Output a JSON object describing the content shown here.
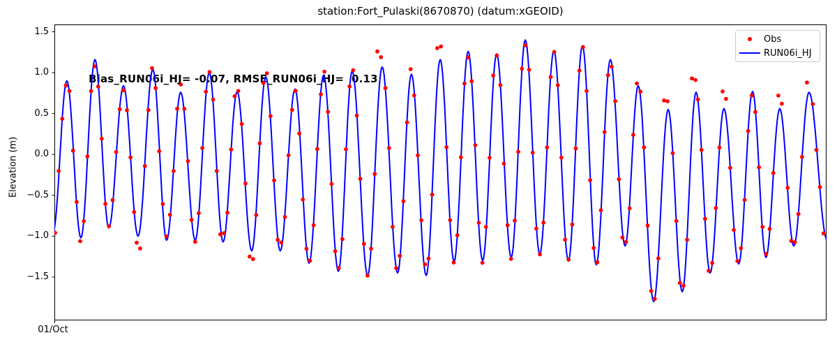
{
  "figure": {
    "title": "station:Fort_Pulaski(8670870) (datum:xGEOID)",
    "y_axis_label": "Elevation (m)",
    "annotation": "Bias_RUN06i_HJ= -0.07, RMSE_RUN06i_HJ=  0.13",
    "x_tick_label": "01/Oct",
    "y_tick_labels": [
      "1.5",
      "1.0",
      "0.5",
      "0.0",
      "−0.5",
      "−1.0",
      "−1.5"
    ]
  },
  "legend": {
    "items": [
      {
        "label": "Obs",
        "marker": "red-dot"
      },
      {
        "label": "RUN06i_HJ",
        "marker": "blue-line"
      }
    ]
  },
  "colors": {
    "obs": "#ff0000",
    "model": "#0000ff",
    "frame": "#000000",
    "legend_border": "#cccccc"
  },
  "chart_data": {
    "type": "line+scatter",
    "title": "station:Fort_Pulaski(8670870) (datum:xGEOID)",
    "xlabel": "",
    "ylabel": "Elevation (m)",
    "ylim": [
      -2.03,
      1.59
    ],
    "yticks": [
      1.5,
      1.0,
      0.5,
      0.0,
      -0.5,
      -1.0,
      -1.5
    ],
    "x_axis": {
      "start_label": "01/Oct",
      "units": "hours since 01/Oct 00:00",
      "range_hours": [
        0,
        335
      ]
    },
    "grid": false,
    "legend_position": "upper right",
    "series": [
      {
        "name": "RUN06i_HJ",
        "type": "line",
        "color": "#0000ff",
        "description": "Semidiurnal tide model curve; alternating trough/peak extrema read from plot as [t_hours, elevation_m]",
        "extrema_t_v": [
          [
            -0.6,
            -0.95
          ],
          [
            5.4,
            0.9
          ],
          [
            11.5,
            -1.02
          ],
          [
            17.6,
            1.16
          ],
          [
            23.6,
            -0.9
          ],
          [
            30.0,
            0.84
          ],
          [
            36.3,
            -1.0
          ],
          [
            42.7,
            1.04
          ],
          [
            48.7,
            -1.05
          ],
          [
            54.8,
            0.76
          ],
          [
            61.1,
            -1.05
          ],
          [
            67.2,
            1.0
          ],
          [
            73.2,
            -1.07
          ],
          [
            79.3,
            0.77
          ],
          [
            85.6,
            -1.18
          ],
          [
            91.7,
            0.95
          ],
          [
            98.0,
            -1.18
          ],
          [
            104.4,
            0.8
          ],
          [
            110.5,
            -1.33
          ],
          [
            116.8,
            0.97
          ],
          [
            123.2,
            -1.43
          ],
          [
            129.2,
            1.02
          ],
          [
            135.9,
            -1.48
          ],
          [
            142.2,
            1.07
          ],
          [
            148.9,
            -1.45
          ],
          [
            154.9,
            0.98
          ],
          [
            161.3,
            -1.48
          ],
          [
            167.4,
            1.16
          ],
          [
            173.4,
            -1.31
          ],
          [
            179.5,
            1.26
          ],
          [
            185.8,
            -1.3
          ],
          [
            191.9,
            1.23
          ],
          [
            198.2,
            -1.26
          ],
          [
            204.3,
            1.4
          ],
          [
            210.6,
            -1.22
          ],
          [
            216.7,
            1.27
          ],
          [
            223.0,
            -1.3
          ],
          [
            229.1,
            1.33
          ],
          [
            235.1,
            -1.35
          ],
          [
            241.2,
            1.16
          ],
          [
            247.6,
            -1.12
          ],
          [
            253.3,
            0.84
          ],
          [
            260.0,
            -1.8
          ],
          [
            266.3,
            0.55
          ],
          [
            272.4,
            -1.68
          ],
          [
            278.4,
            0.76
          ],
          [
            284.5,
            -1.45
          ],
          [
            290.5,
            0.56
          ],
          [
            296.9,
            -1.34
          ],
          [
            302.9,
            0.77
          ],
          [
            308.7,
            -1.26
          ],
          [
            314.7,
            0.56
          ],
          [
            320.8,
            -1.12
          ],
          [
            327.4,
            0.76
          ],
          [
            335.3,
            -1.05
          ]
        ]
      },
      {
        "name": "Obs",
        "type": "scatter",
        "color": "#ff0000",
        "description": "Observations follow the model curve at ~1.56 h spacing with ~±0.1 m scatter; clearly detached points listed as outliers",
        "sample_step_hours": 1.558,
        "scatter_amplitude_m": 0.12,
        "outliers_t_v": [
          [
            35.7,
            -1.08
          ],
          [
            37.2,
            -1.15
          ],
          [
            84.7,
            -1.25
          ],
          [
            86.2,
            -1.28
          ],
          [
            140.1,
            1.26
          ],
          [
            141.7,
            1.19
          ],
          [
            166.1,
            1.3
          ],
          [
            167.7,
            1.32
          ],
          [
            264.5,
            0.66
          ],
          [
            266.0,
            0.65
          ],
          [
            276.6,
            0.93
          ],
          [
            278.1,
            0.91
          ],
          [
            289.9,
            0.77
          ],
          [
            291.4,
            0.68
          ],
          [
            314.1,
            0.72
          ],
          [
            315.6,
            0.62
          ],
          [
            326.5,
            0.88
          ]
        ]
      }
    ]
  }
}
